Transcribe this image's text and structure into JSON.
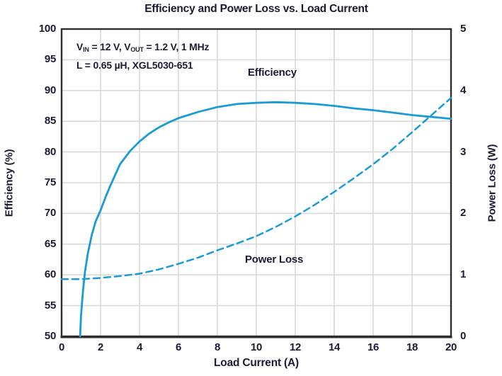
{
  "title": "Efficiency and Power Loss vs. Load Current",
  "colors": {
    "curve": "#189bd7",
    "text": "#1b1b35",
    "grid": "#d9d9d9",
    "axis": "#2d2d2d",
    "background": "#ffffff"
  },
  "chart_data": {
    "type": "line",
    "title": "Efficiency and Power Loss vs. Load Current",
    "xlabel": "Load Current (A)",
    "ylabel_left": "Efficiency (%)",
    "ylabel_right": "Power Loss (W)",
    "xlim": [
      0,
      20
    ],
    "ylim_left": [
      50,
      100
    ],
    "ylim_right": [
      0,
      5
    ],
    "x_ticks": [
      0,
      2,
      4,
      6,
      8,
      10,
      12,
      14,
      16,
      18,
      20
    ],
    "y_left_ticks": [
      50,
      55,
      60,
      65,
      70,
      75,
      80,
      85,
      90,
      95,
      100
    ],
    "y_right_ticks": [
      0,
      1,
      2,
      3,
      4,
      5
    ],
    "grid": "on",
    "legend_position": "inline-labels",
    "annotation": {
      "line1_parts": [
        {
          "t": "V"
        },
        {
          "t": "IN",
          "sub": true
        },
        {
          "t": " = 12 V, V"
        },
        {
          "t": "OUT",
          "sub": true
        },
        {
          "t": " = 1.2 V, 1 MHz"
        }
      ],
      "line2": "L = 0.65 µH, XGL5030-651"
    },
    "series": [
      {
        "name": "Efficiency",
        "label": "Efficiency",
        "axis": "left",
        "line_style": "solid",
        "points": [
          [
            0.95,
            50
          ],
          [
            1.0,
            53.5
          ],
          [
            1.1,
            57.5
          ],
          [
            1.2,
            60.5
          ],
          [
            1.35,
            63.5
          ],
          [
            1.55,
            66.5
          ],
          [
            1.75,
            68.7
          ],
          [
            2,
            70.5
          ],
          [
            2.25,
            72.6
          ],
          [
            2.5,
            74.5
          ],
          [
            3,
            78
          ],
          [
            3.5,
            80.1
          ],
          [
            4,
            81.7
          ],
          [
            4.5,
            83
          ],
          [
            5,
            84
          ],
          [
            5.5,
            84.8
          ],
          [
            6,
            85.5
          ],
          [
            7,
            86.5
          ],
          [
            8,
            87.3
          ],
          [
            9,
            87.8
          ],
          [
            10,
            88
          ],
          [
            11,
            88.1
          ],
          [
            12,
            88
          ],
          [
            13,
            87.8
          ],
          [
            14,
            87.5
          ],
          [
            15,
            87.1
          ],
          [
            16,
            86.8
          ],
          [
            17,
            86.4
          ],
          [
            18,
            86
          ],
          [
            19,
            85.7
          ],
          [
            20,
            85.4
          ]
        ]
      },
      {
        "name": "Power Loss",
        "label": "Power Loss",
        "axis": "right",
        "line_style": "dashed",
        "points": [
          [
            0,
            0.93
          ],
          [
            1,
            0.93
          ],
          [
            2,
            0.95
          ],
          [
            3,
            0.98
          ],
          [
            4,
            1.02
          ],
          [
            5,
            1.09
          ],
          [
            6,
            1.18
          ],
          [
            7,
            1.28
          ],
          [
            8,
            1.4
          ],
          [
            9,
            1.51
          ],
          [
            10,
            1.63
          ],
          [
            11,
            1.78
          ],
          [
            12,
            1.95
          ],
          [
            13,
            2.14
          ],
          [
            14,
            2.35
          ],
          [
            15,
            2.57
          ],
          [
            16,
            2.8
          ],
          [
            17,
            3.05
          ],
          [
            18,
            3.32
          ],
          [
            19,
            3.6
          ],
          [
            20,
            3.88
          ]
        ]
      }
    ]
  }
}
